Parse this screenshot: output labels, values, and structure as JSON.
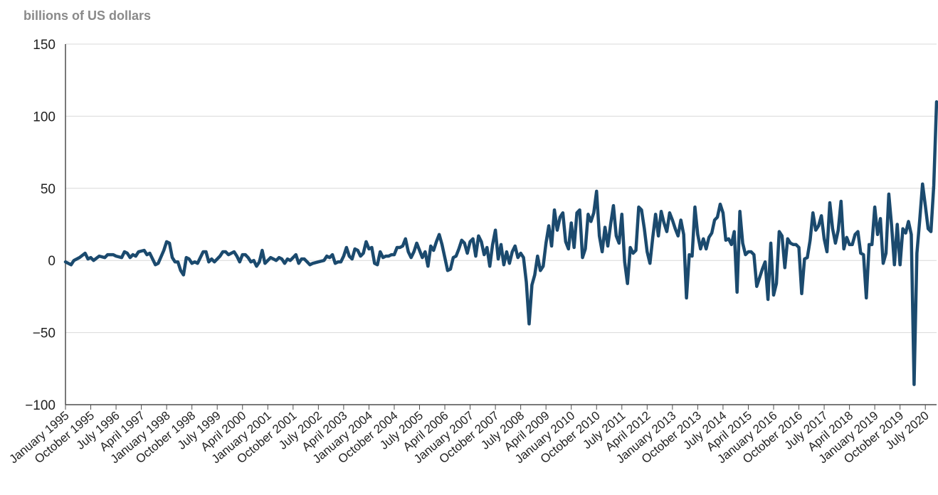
{
  "chart_data": {
    "type": "line",
    "ylabel": "billions of US dollars",
    "ylim": [
      -100,
      150
    ],
    "yticks": [
      150,
      100,
      50,
      0,
      -50,
      -100
    ],
    "ytick_labels": [
      "150",
      "100",
      "50",
      "0",
      "−50",
      "−100"
    ],
    "grid": "horizontal",
    "x_start": "January 1995",
    "x_end": "October 2020",
    "xtick_labels": [
      "January 1995",
      "October 1995",
      "July 1996",
      "April 1997",
      "January 1998",
      "October 1998",
      "July 1999",
      "April 2000",
      "January 2001",
      "October 2001",
      "July 2002",
      "April 2003",
      "January 2004",
      "October 2004",
      "July 2005",
      "April 2006",
      "January 2007",
      "October 2007",
      "July 2008",
      "April 2009",
      "January 2010",
      "October 2010",
      "July 2011",
      "April 2012",
      "January 2013",
      "October 2013",
      "July 2014",
      "April 2015",
      "January 2016",
      "October 2016",
      "July 2017",
      "April 2018",
      "January 2019",
      "October 2019",
      "July 2020"
    ],
    "series": [
      {
        "color": "#1b4a6e",
        "points": [
          [
            "1995-01",
            -1
          ],
          [
            "1995-03",
            -3
          ],
          [
            "1995-04",
            0
          ],
          [
            "1995-06",
            2
          ],
          [
            "1995-08",
            5
          ],
          [
            "1995-09",
            1
          ],
          [
            "1995-10",
            2
          ],
          [
            "1995-11",
            0
          ],
          [
            "1996-01",
            3
          ],
          [
            "1996-03",
            2
          ],
          [
            "1996-04",
            4
          ],
          [
            "1996-06",
            4
          ],
          [
            "1996-07",
            3
          ],
          [
            "1996-09",
            2
          ],
          [
            "1996-10",
            6
          ],
          [
            "1996-11",
            5
          ],
          [
            "1996-12",
            2
          ],
          [
            "1997-01",
            4
          ],
          [
            "1997-02",
            3
          ],
          [
            "1997-03",
            6
          ],
          [
            "1997-05",
            7
          ],
          [
            "1997-06",
            4
          ],
          [
            "1997-07",
            5
          ],
          [
            "1997-09",
            -3
          ],
          [
            "1997-10",
            -2
          ],
          [
            "1997-12",
            7
          ],
          [
            "1998-01",
            13
          ],
          [
            "1998-02",
            12
          ],
          [
            "1998-03",
            2
          ],
          [
            "1998-04",
            -1
          ],
          [
            "1998-05",
            -1
          ],
          [
            "1998-06",
            -7
          ],
          [
            "1998-07",
            -10
          ],
          [
            "1998-08",
            2
          ],
          [
            "1998-09",
            1
          ],
          [
            "1998-10",
            -2
          ],
          [
            "1998-11",
            -1
          ],
          [
            "1998-12",
            -2
          ],
          [
            "1999-02",
            6
          ],
          [
            "1999-03",
            6
          ],
          [
            "1999-04",
            -1
          ],
          [
            "1999-05",
            1
          ],
          [
            "1999-06",
            -1
          ],
          [
            "1999-08",
            3
          ],
          [
            "1999-09",
            6
          ],
          [
            "1999-10",
            6
          ],
          [
            "1999-11",
            4
          ],
          [
            "2000-01",
            6
          ],
          [
            "2000-02",
            3
          ],
          [
            "2000-03",
            -1
          ],
          [
            "2000-04",
            4
          ],
          [
            "2000-05",
            4
          ],
          [
            "2000-06",
            2
          ],
          [
            "2000-07",
            -1
          ],
          [
            "2000-08",
            0
          ],
          [
            "2000-09",
            -4
          ],
          [
            "2000-10",
            -1
          ],
          [
            "2000-11",
            7
          ],
          [
            "2000-12",
            -2
          ],
          [
            "2001-02",
            2
          ],
          [
            "2001-03",
            1
          ],
          [
            "2001-04",
            0
          ],
          [
            "2001-05",
            2
          ],
          [
            "2001-06",
            1
          ],
          [
            "2001-07",
            -2
          ],
          [
            "2001-08",
            1
          ],
          [
            "2001-09",
            0
          ],
          [
            "2001-10",
            2
          ],
          [
            "2001-11",
            4
          ],
          [
            "2001-12",
            -2
          ],
          [
            "2002-01",
            1
          ],
          [
            "2002-02",
            1
          ],
          [
            "2002-03",
            -1
          ],
          [
            "2002-04",
            -3
          ],
          [
            "2002-05",
            -2
          ],
          [
            "2002-07",
            -1
          ],
          [
            "2002-09",
            0
          ],
          [
            "2002-10",
            3
          ],
          [
            "2002-11",
            2
          ],
          [
            "2002-12",
            4
          ],
          [
            "2003-01",
            -2
          ],
          [
            "2003-02",
            -1
          ],
          [
            "2003-03",
            -1
          ],
          [
            "2003-04",
            3
          ],
          [
            "2003-05",
            9
          ],
          [
            "2003-06",
            3
          ],
          [
            "2003-07",
            1
          ],
          [
            "2003-08",
            8
          ],
          [
            "2003-09",
            7
          ],
          [
            "2003-10",
            3
          ],
          [
            "2003-11",
            5
          ],
          [
            "2003-12",
            13
          ],
          [
            "2004-01",
            8
          ],
          [
            "2004-02",
            9
          ],
          [
            "2004-03",
            -2
          ],
          [
            "2004-04",
            -3
          ],
          [
            "2004-05",
            6
          ],
          [
            "2004-06",
            2
          ],
          [
            "2004-07",
            3
          ],
          [
            "2004-08",
            3
          ],
          [
            "2004-09",
            4
          ],
          [
            "2004-10",
            4
          ],
          [
            "2004-11",
            9
          ],
          [
            "2004-12",
            9
          ],
          [
            "2005-01",
            10
          ],
          [
            "2005-02",
            15
          ],
          [
            "2005-03",
            6
          ],
          [
            "2005-04",
            2
          ],
          [
            "2005-05",
            6
          ],
          [
            "2005-06",
            12
          ],
          [
            "2005-07",
            7
          ],
          [
            "2005-08",
            2
          ],
          [
            "2005-09",
            6
          ],
          [
            "2005-10",
            -4
          ],
          [
            "2005-11",
            10
          ],
          [
            "2005-12",
            7
          ],
          [
            "2006-01",
            13
          ],
          [
            "2006-02",
            18
          ],
          [
            "2006-03",
            11
          ],
          [
            "2006-04",
            2
          ],
          [
            "2006-05",
            -7
          ],
          [
            "2006-06",
            -6
          ],
          [
            "2006-07",
            2
          ],
          [
            "2006-08",
            3
          ],
          [
            "2006-09",
            8
          ],
          [
            "2006-10",
            14
          ],
          [
            "2006-11",
            12
          ],
          [
            "2006-12",
            5
          ],
          [
            "2007-01",
            13
          ],
          [
            "2007-02",
            15
          ],
          [
            "2007-03",
            3
          ],
          [
            "2007-04",
            17
          ],
          [
            "2007-05",
            13
          ],
          [
            "2007-06",
            4
          ],
          [
            "2007-07",
            9
          ],
          [
            "2007-08",
            -4
          ],
          [
            "2007-09",
            11
          ],
          [
            "2007-10",
            21
          ],
          [
            "2007-11",
            1
          ],
          [
            "2007-12",
            11
          ],
          [
            "2008-01",
            -3
          ],
          [
            "2008-02",
            6
          ],
          [
            "2008-03",
            -2
          ],
          [
            "2008-04",
            6
          ],
          [
            "2008-05",
            10
          ],
          [
            "2008-06",
            2
          ],
          [
            "2008-07",
            5
          ],
          [
            "2008-08",
            2
          ],
          [
            "2008-09",
            -15
          ],
          [
            "2008-10",
            -44
          ],
          [
            "2008-11",
            -17
          ],
          [
            "2008-12",
            -10
          ],
          [
            "2009-01",
            3
          ],
          [
            "2009-02",
            -7
          ],
          [
            "2009-03",
            -4
          ],
          [
            "2009-04",
            12
          ],
          [
            "2009-05",
            24
          ],
          [
            "2009-06",
            10
          ],
          [
            "2009-07",
            35
          ],
          [
            "2009-08",
            21
          ],
          [
            "2009-09",
            30
          ],
          [
            "2009-10",
            33
          ],
          [
            "2009-11",
            13
          ],
          [
            "2009-12",
            8
          ],
          [
            "2010-01",
            26
          ],
          [
            "2010-02",
            9
          ],
          [
            "2010-03",
            33
          ],
          [
            "2010-04",
            35
          ],
          [
            "2010-05",
            2
          ],
          [
            "2010-06",
            8
          ],
          [
            "2010-07",
            32
          ],
          [
            "2010-08",
            27
          ],
          [
            "2010-09",
            33
          ],
          [
            "2010-10",
            48
          ],
          [
            "2010-11",
            17
          ],
          [
            "2010-12",
            6
          ],
          [
            "2011-01",
            23
          ],
          [
            "2011-02",
            10
          ],
          [
            "2011-03",
            25
          ],
          [
            "2011-04",
            38
          ],
          [
            "2011-05",
            17
          ],
          [
            "2011-06",
            12
          ],
          [
            "2011-07",
            32
          ],
          [
            "2011-08",
            -1
          ],
          [
            "2011-09",
            -16
          ],
          [
            "2011-10",
            9
          ],
          [
            "2011-11",
            5
          ],
          [
            "2011-12",
            7
          ],
          [
            "2012-01",
            37
          ],
          [
            "2012-02",
            35
          ],
          [
            "2012-03",
            22
          ],
          [
            "2012-04",
            6
          ],
          [
            "2012-05",
            -2
          ],
          [
            "2012-06",
            16
          ],
          [
            "2012-07",
            32
          ],
          [
            "2012-08",
            17
          ],
          [
            "2012-09",
            34
          ],
          [
            "2012-10",
            26
          ],
          [
            "2012-11",
            20
          ],
          [
            "2012-12",
            33
          ],
          [
            "2013-01",
            28
          ],
          [
            "2013-02",
            22
          ],
          [
            "2013-03",
            17
          ],
          [
            "2013-04",
            28
          ],
          [
            "2013-05",
            18
          ],
          [
            "2013-06",
            -26
          ],
          [
            "2013-07",
            4
          ],
          [
            "2013-08",
            3
          ],
          [
            "2013-09",
            37
          ],
          [
            "2013-10",
            18
          ],
          [
            "2013-11",
            8
          ],
          [
            "2013-12",
            15
          ],
          [
            "2014-01",
            8
          ],
          [
            "2014-02",
            16
          ],
          [
            "2014-03",
            19
          ],
          [
            "2014-04",
            28
          ],
          [
            "2014-05",
            30
          ],
          [
            "2014-06",
            39
          ],
          [
            "2014-07",
            33
          ],
          [
            "2014-08",
            14
          ],
          [
            "2014-09",
            15
          ],
          [
            "2014-10",
            11
          ],
          [
            "2014-11",
            20
          ],
          [
            "2014-12",
            -22
          ],
          [
            "2015-01",
            34
          ],
          [
            "2015-02",
            12
          ],
          [
            "2015-03",
            4
          ],
          [
            "2015-04",
            6
          ],
          [
            "2015-05",
            6
          ],
          [
            "2015-06",
            4
          ],
          [
            "2015-07",
            -18
          ],
          [
            "2015-08",
            -12
          ],
          [
            "2015-09",
            -6
          ],
          [
            "2015-10",
            -1
          ],
          [
            "2015-11",
            -27
          ],
          [
            "2015-12",
            12
          ],
          [
            "2016-01",
            -24
          ],
          [
            "2016-02",
            -16
          ],
          [
            "2016-03",
            20
          ],
          [
            "2016-04",
            17
          ],
          [
            "2016-05",
            -5
          ],
          [
            "2016-06",
            15
          ],
          [
            "2016-07",
            12
          ],
          [
            "2016-08",
            11
          ],
          [
            "2016-09",
            11
          ],
          [
            "2016-10",
            9
          ],
          [
            "2016-11",
            -23
          ],
          [
            "2016-12",
            1
          ],
          [
            "2017-01",
            2
          ],
          [
            "2017-02",
            14
          ],
          [
            "2017-03",
            33
          ],
          [
            "2017-04",
            21
          ],
          [
            "2017-05",
            24
          ],
          [
            "2017-06",
            31
          ],
          [
            "2017-07",
            15
          ],
          [
            "2017-08",
            6
          ],
          [
            "2017-09",
            40
          ],
          [
            "2017-10",
            22
          ],
          [
            "2017-11",
            12
          ],
          [
            "2017-12",
            21
          ],
          [
            "2018-01",
            41
          ],
          [
            "2018-02",
            8
          ],
          [
            "2018-03",
            16
          ],
          [
            "2018-04",
            11
          ],
          [
            "2018-05",
            11
          ],
          [
            "2018-06",
            18
          ],
          [
            "2018-07",
            20
          ],
          [
            "2018-08",
            5
          ],
          [
            "2018-09",
            4
          ],
          [
            "2018-10",
            -26
          ],
          [
            "2018-11",
            11
          ],
          [
            "2018-12",
            11
          ],
          [
            "2019-01",
            37
          ],
          [
            "2019-02",
            18
          ],
          [
            "2019-03",
            29
          ],
          [
            "2019-04",
            -2
          ],
          [
            "2019-05",
            5
          ],
          [
            "2019-06",
            46
          ],
          [
            "2019-07",
            24
          ],
          [
            "2019-08",
            -3
          ],
          [
            "2019-09",
            25
          ],
          [
            "2019-10",
            -3
          ],
          [
            "2019-11",
            22
          ],
          [
            "2019-12",
            19
          ],
          [
            "2020-01",
            27
          ],
          [
            "2020-02",
            18
          ],
          [
            "2020-03",
            -86
          ],
          [
            "2020-04",
            5
          ],
          [
            "2020-05",
            28
          ],
          [
            "2020-06",
            53
          ],
          [
            "2020-07",
            38
          ],
          [
            "2020-08",
            22
          ],
          [
            "2020-09",
            20
          ],
          [
            "2020-10",
            52
          ],
          [
            "2020-11",
            110
          ]
        ]
      }
    ]
  }
}
